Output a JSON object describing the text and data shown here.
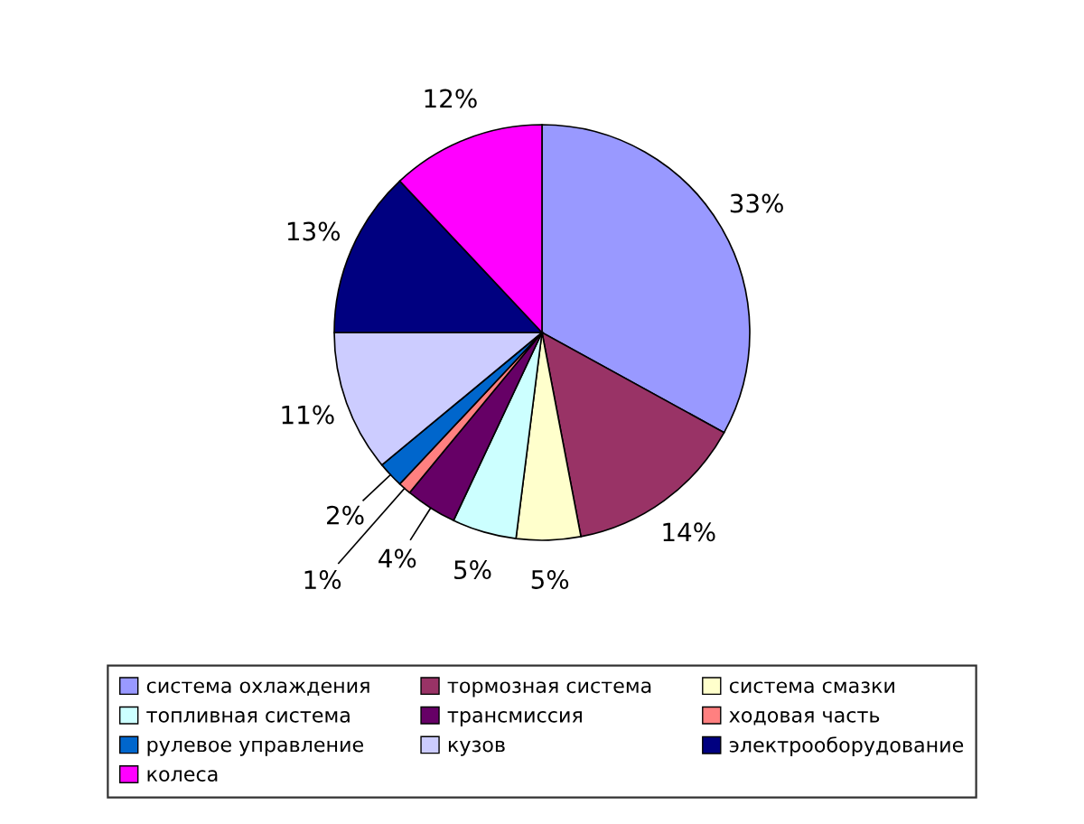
{
  "chart_data": {
    "type": "pie",
    "categories": [
      "система охлаждения",
      "тормозная система",
      "система смазки",
      "топливная система",
      "трансмиссия",
      "ходовая часть",
      "рулевое управление",
      "кузов",
      "электрооборудование",
      "колеса"
    ],
    "values": [
      33,
      14,
      5,
      5,
      4,
      1,
      2,
      11,
      13,
      12
    ],
    "value_labels": [
      "33%",
      "14%",
      "5%",
      "5%",
      "4%",
      "1%",
      "2%",
      "11%",
      "13%",
      "12%"
    ],
    "colors": [
      "#9999ff",
      "#993366",
      "#ffffcc",
      "#ccffff",
      "#660066",
      "#ff8080",
      "#0066cc",
      "#ccccff",
      "#000080",
      "#ff00ff"
    ],
    "legend": "bottom"
  }
}
